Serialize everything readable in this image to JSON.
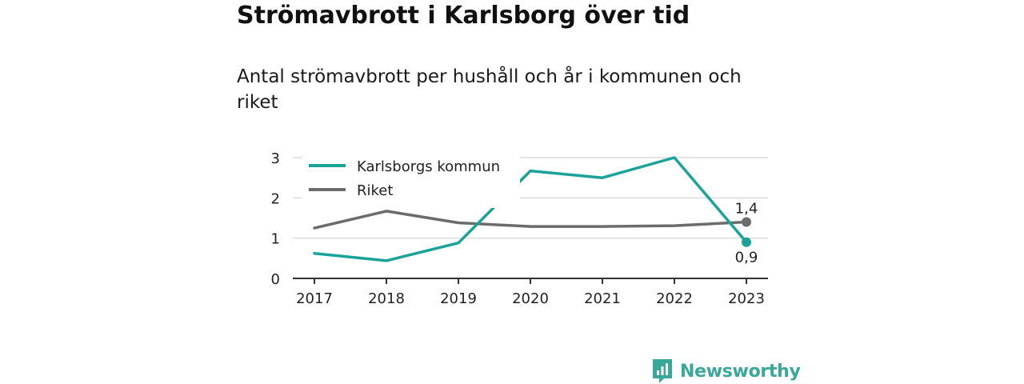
{
  "title": "Strömavbrott i Karlsborg över tid",
  "subtitle": "Antal strömavbrott per hushåll och år i kommunen och riket",
  "brand": {
    "name": "Newsworthy",
    "icon": "newsworthy-logo-icon"
  },
  "colors": {
    "karlsborg": "#1ba39a",
    "riket": "#6b6b6b",
    "grid": "#dcdcdc",
    "axis": "#333333",
    "brand": "#3aa79b"
  },
  "chart_data": {
    "type": "line",
    "title": "Strömavbrott i Karlsborg över tid",
    "subtitle": "Antal strömavbrott per hushåll och år i kommunen och riket",
    "x": [
      "2017",
      "2018",
      "2019",
      "2020",
      "2021",
      "2022",
      "2023"
    ],
    "xlabel": "",
    "ylabel": "",
    "ylim": [
      0,
      3
    ],
    "yticks": [
      "0",
      "1",
      "2",
      "3"
    ],
    "grid": true,
    "legend": "top-left",
    "series": [
      {
        "name": "Karlsborgs kommun",
        "values": [
          0.62,
          0.44,
          0.88,
          2.67,
          2.5,
          3.0,
          0.9
        ],
        "end_label": "0,9"
      },
      {
        "name": "Riket",
        "values": [
          1.25,
          1.67,
          1.38,
          1.29,
          1.29,
          1.31,
          1.4
        ],
        "end_label": "1,4"
      }
    ]
  }
}
